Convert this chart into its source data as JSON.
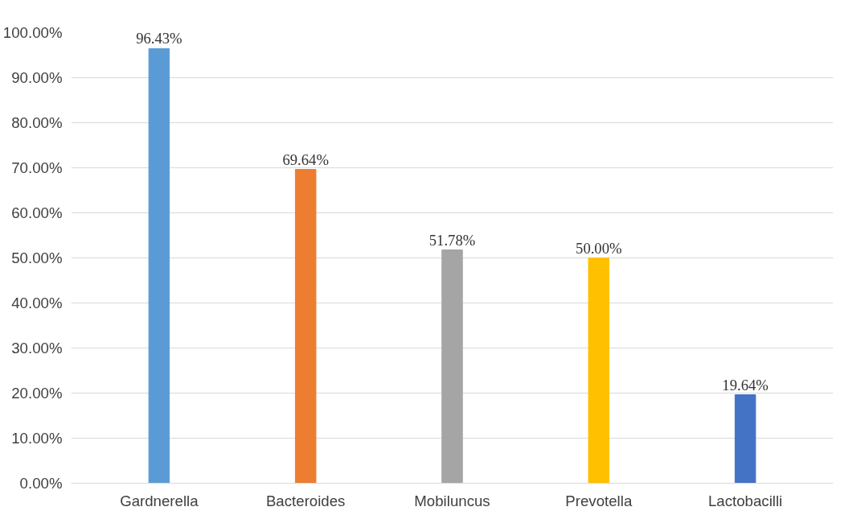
{
  "chart_data": {
    "type": "bar",
    "categories": [
      "Gardnerella",
      "Bacteroides",
      "Mobiluncus",
      "Prevotella",
      "Lactobacilli"
    ],
    "values": [
      96.43,
      69.64,
      51.78,
      50.0,
      19.64
    ],
    "colors": [
      "#5b9bd5",
      "#ed7d31",
      "#a5a5a5",
      "#ffc000",
      "#4472c4"
    ],
    "value_labels": [
      "96.43%",
      "69.64%",
      "51.78%",
      "50.00%",
      "19.64%"
    ],
    "ylim": [
      0,
      100
    ],
    "yticks": [
      {
        "value": 0,
        "label": "0.00%"
      },
      {
        "value": 10,
        "label": "10.00%"
      },
      {
        "value": 20,
        "label": "20.00%"
      },
      {
        "value": 30,
        "label": "30.00%"
      },
      {
        "value": 40,
        "label": "40.00%"
      },
      {
        "value": 50,
        "label": "50.00%"
      },
      {
        "value": 60,
        "label": "60.00%"
      },
      {
        "value": 70,
        "label": "70.00%"
      },
      {
        "value": 80,
        "label": "80.00%"
      },
      {
        "value": 90,
        "label": "90.00%"
      },
      {
        "value": 100,
        "label": "100.00%"
      }
    ],
    "grid": "y"
  }
}
